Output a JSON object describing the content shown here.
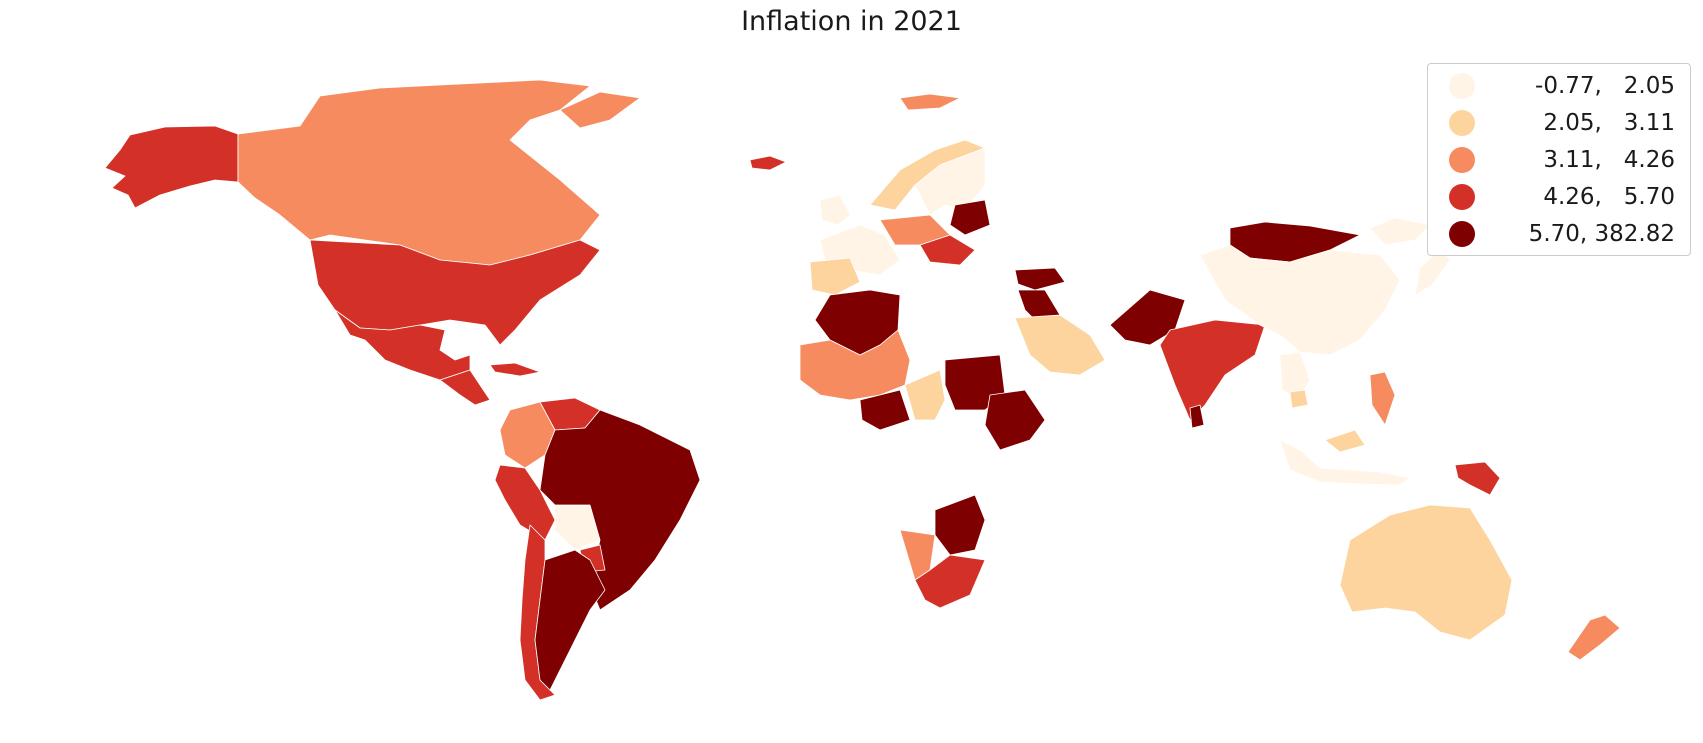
{
  "title": "Inflation in 2021",
  "scheme": "OrRd",
  "colors": {
    "class1": "#fff4e6",
    "class2": "#fdd49e",
    "class3": "#f58b5f",
    "class4": "#d33127",
    "class5": "#7f0000",
    "background": "#ffffff"
  },
  "legend": {
    "position": "top-right",
    "items": [
      {
        "label": "-0.77,   2.05",
        "color": "#fff4e6"
      },
      {
        "label": " 2.05,   3.11",
        "color": "#fdd49e"
      },
      {
        "label": " 3.11,   4.26",
        "color": "#f58b5f"
      },
      {
        "label": " 4.26,   5.70",
        "color": "#d33127"
      },
      {
        "label": " 5.70, 382.82",
        "color": "#7f0000"
      }
    ]
  },
  "regions": [
    {
      "name": "alaska",
      "class": 4
    },
    {
      "name": "canada",
      "class": 3
    },
    {
      "name": "greenland",
      "class": 3
    },
    {
      "name": "iceland",
      "class": 4
    },
    {
      "name": "svalbard",
      "class": 3
    },
    {
      "name": "united-states",
      "class": 4
    },
    {
      "name": "mexico",
      "class": 4
    },
    {
      "name": "central-america",
      "class": 4
    },
    {
      "name": "cuba",
      "class": 4
    },
    {
      "name": "colombia",
      "class": 3
    },
    {
      "name": "venezuela",
      "class": 4
    },
    {
      "name": "peru",
      "class": 4
    },
    {
      "name": "bolivia",
      "class": 1
    },
    {
      "name": "brazil",
      "class": 5
    },
    {
      "name": "paraguay",
      "class": 4
    },
    {
      "name": "chile",
      "class": 4
    },
    {
      "name": "argentina",
      "class": 5
    },
    {
      "name": "norway",
      "class": 2
    },
    {
      "name": "sweden-finland",
      "class": 1
    },
    {
      "name": "united-kingdom",
      "class": 1
    },
    {
      "name": "western-europe",
      "class": 1
    },
    {
      "name": "germany-poland",
      "class": 3
    },
    {
      "name": "baltics-belarus",
      "class": 5
    },
    {
      "name": "eastern-europe",
      "class": 4
    },
    {
      "name": "iberia",
      "class": 2
    },
    {
      "name": "algeria",
      "class": 5
    },
    {
      "name": "west-africa-sahel",
      "class": 3
    },
    {
      "name": "nigeria",
      "class": 5
    },
    {
      "name": "central-africa",
      "class": 2
    },
    {
      "name": "sudan",
      "class": 5
    },
    {
      "name": "ethiopia",
      "class": 5
    },
    {
      "name": "southern-africa",
      "class": 5
    },
    {
      "name": "namibia",
      "class": 3
    },
    {
      "name": "south-africa",
      "class": 4
    },
    {
      "name": "turkey",
      "class": 5
    },
    {
      "name": "iraq",
      "class": 5
    },
    {
      "name": "saudi-arabia",
      "class": 2
    },
    {
      "name": "iran-pakistan",
      "class": 5
    },
    {
      "name": "india",
      "class": 4
    },
    {
      "name": "sri-lanka",
      "class": 5
    },
    {
      "name": "mongolia",
      "class": 5
    },
    {
      "name": "china",
      "class": 1
    },
    {
      "name": "japan",
      "class": 1
    },
    {
      "name": "russia-east",
      "class": 1
    },
    {
      "name": "southeast-asia",
      "class": 1
    },
    {
      "name": "thailand",
      "class": 2
    },
    {
      "name": "philippines",
      "class": 3
    },
    {
      "name": "malaysia",
      "class": 2
    },
    {
      "name": "indonesia",
      "class": 1
    },
    {
      "name": "papua-new-guinea",
      "class": 4
    },
    {
      "name": "australia",
      "class": 2
    },
    {
      "name": "new-zealand",
      "class": 3
    }
  ]
}
